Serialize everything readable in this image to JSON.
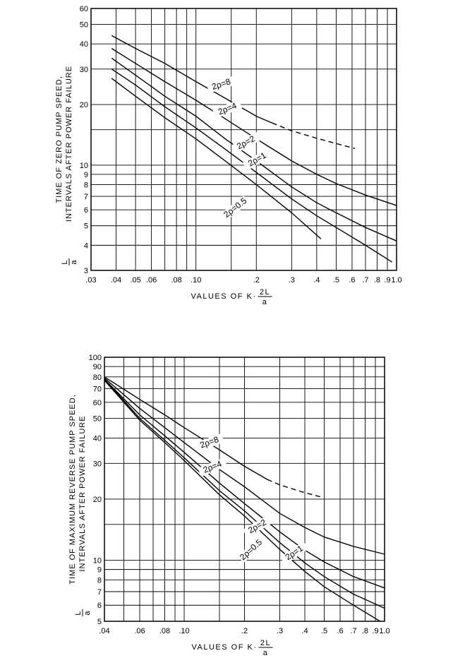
{
  "chart_data": [
    {
      "type": "line",
      "x_scale": "log",
      "y_scale": "log",
      "xlim": [
        0.03,
        1.0
      ],
      "ylim": [
        3,
        60
      ],
      "grid": true,
      "x_tick_labels": [
        ".03",
        ".04",
        ".05",
        ".06",
        ".08",
        ".10",
        ".2",
        ".3",
        ".4",
        ".5",
        ".6",
        ".7",
        ".8",
        ".9",
        "1.0"
      ],
      "x_tick_values": [
        0.03,
        0.04,
        0.05,
        0.06,
        0.08,
        0.1,
        0.2,
        0.3,
        0.4,
        0.5,
        0.6,
        0.7,
        0.8,
        0.9,
        1.0
      ],
      "x_grid_values": [
        0.03,
        0.04,
        0.05,
        0.06,
        0.07,
        0.08,
        0.09,
        0.1,
        0.15,
        0.2,
        0.3,
        0.4,
        0.5,
        0.6,
        0.7,
        0.8,
        0.9,
        1.0
      ],
      "y_tick_labels": [
        "60",
        "50",
        "40",
        "30",
        "20",
        "10",
        "9",
        "8",
        "7",
        "6",
        "5",
        "4",
        "3"
      ],
      "y_tick_values": [
        60,
        50,
        40,
        30,
        20,
        10,
        9,
        8,
        7,
        6,
        5,
        4,
        3
      ],
      "y_grid_values": [
        3,
        4,
        5,
        6,
        7,
        8,
        9,
        10,
        15,
        20,
        30,
        40,
        50,
        60
      ],
      "xlabel_main": "VALUES OF K·",
      "xlabel_num": "2L",
      "xlabel_den": "a",
      "ylabel_line1": "TIME OF ZERO PUMP SPEED,",
      "ylabel_frac_num": "L",
      "ylabel_frac_den": "a",
      "ylabel_line2": "INTERVALS AFTER POWER FAILURE",
      "series": [
        {
          "name": "2ρ=8",
          "x": [
            0.038,
            0.05,
            0.07,
            0.1,
            0.14,
            0.2,
            0.24
          ],
          "y": [
            44,
            38,
            32,
            26,
            21.5,
            17.5,
            16.2
          ],
          "dashed_x": [
            0.24,
            0.3,
            0.4,
            0.5,
            0.62
          ],
          "dashed_y": [
            16.2,
            14.8,
            13.6,
            12.8,
            12.1
          ]
        },
        {
          "name": "2ρ=4",
          "x": [
            0.038,
            0.05,
            0.07,
            0.1,
            0.14,
            0.2,
            0.3,
            0.4,
            0.5,
            0.7,
            1.0
          ],
          "y": [
            38,
            32,
            26,
            21,
            17,
            13.5,
            10.5,
            9,
            8.1,
            7.1,
            6.3
          ]
        },
        {
          "name": "2ρ=2",
          "x": [
            0.038,
            0.05,
            0.07,
            0.1,
            0.14,
            0.2,
            0.3,
            0.4,
            0.5,
            0.7,
            1.0
          ],
          "y": [
            34,
            28,
            22,
            17.5,
            13.5,
            10.5,
            7.8,
            6.5,
            5.8,
            4.9,
            4.2
          ]
        },
        {
          "name": "2ρ=1",
          "x": [
            0.038,
            0.05,
            0.07,
            0.1,
            0.14,
            0.2,
            0.3,
            0.4,
            0.5,
            0.7,
            0.95
          ],
          "y": [
            30,
            25,
            19.5,
            15.3,
            12,
            9.2,
            6.8,
            5.6,
            4.9,
            4.0,
            3.3
          ]
        },
        {
          "name": "2ρ=0.5",
          "x": [
            0.038,
            0.05,
            0.07,
            0.1,
            0.14,
            0.2,
            0.3,
            0.42
          ],
          "y": [
            27,
            22,
            17.2,
            13.5,
            10.5,
            8.0,
            5.8,
            4.3
          ]
        }
      ],
      "annotations": [
        {
          "text": "2ρ=8",
          "x": 0.135,
          "y": 24.5,
          "angle": -18
        },
        {
          "text": "2ρ=4",
          "x": 0.145,
          "y": 18.5,
          "angle": -22
        },
        {
          "text": "2ρ=2",
          "x": 0.18,
          "y": 12.6,
          "angle": -28
        },
        {
          "text": "2ρ=1",
          "x": 0.205,
          "y": 10.4,
          "angle": -30
        },
        {
          "text": "2ρ=0.5",
          "x": 0.16,
          "y": 6.0,
          "angle": -38
        }
      ]
    },
    {
      "type": "line",
      "x_scale": "log",
      "y_scale": "log",
      "xlim": [
        0.04,
        1.0
      ],
      "ylim": [
        5,
        100
      ],
      "grid": true,
      "x_tick_labels": [
        ".04",
        ".06",
        ".08",
        ".10",
        ".2",
        ".3",
        ".4",
        ".5",
        ".6",
        ".7",
        ".8",
        ".9",
        "1.0"
      ],
      "x_tick_values": [
        0.04,
        0.06,
        0.08,
        0.1,
        0.2,
        0.3,
        0.4,
        0.5,
        0.6,
        0.7,
        0.8,
        0.9,
        1.0
      ],
      "x_grid_values": [
        0.04,
        0.05,
        0.06,
        0.07,
        0.08,
        0.09,
        0.1,
        0.15,
        0.2,
        0.3,
        0.4,
        0.5,
        0.6,
        0.7,
        0.8,
        0.9,
        1.0
      ],
      "y_tick_labels": [
        "100",
        "90",
        "80",
        "70",
        "60",
        "50",
        "40",
        "30",
        "20",
        "10",
        "9",
        "8",
        "7",
        "6",
        "5"
      ],
      "y_tick_values": [
        100,
        90,
        80,
        70,
        60,
        50,
        40,
        30,
        20,
        10,
        9,
        8,
        7,
        6,
        5
      ],
      "y_grid_values": [
        5,
        6,
        7,
        8,
        9,
        10,
        15,
        20,
        30,
        40,
        50,
        60,
        70,
        80,
        90,
        100
      ],
      "xlabel_main": "VALUES OF K·",
      "xlabel_num": "2L",
      "xlabel_den": "a",
      "ylabel_line1": "TIME OF MAXIMUM REVERSE PUMP SPEED,",
      "ylabel_frac_num": "L",
      "ylabel_frac_den": "a",
      "ylabel_line2": "INTERVALS AFTER POWER FAILURE",
      "series": [
        {
          "name": "2ρ=8",
          "x": [
            0.04,
            0.06,
            0.08,
            0.1,
            0.15,
            0.2,
            0.26
          ],
          "y": [
            80,
            62,
            52,
            45,
            35,
            29,
            25
          ],
          "dashed_x": [
            0.26,
            0.3,
            0.4,
            0.48
          ],
          "dashed_y": [
            25,
            23.5,
            21.5,
            20.5
          ]
        },
        {
          "name": "2ρ=4",
          "x": [
            0.04,
            0.06,
            0.08,
            0.1,
            0.15,
            0.2,
            0.3,
            0.4,
            0.5,
            0.7,
            1.0
          ],
          "y": [
            79,
            56,
            45,
            38,
            28,
            23,
            17,
            14.5,
            13,
            11.7,
            10.7
          ]
        },
        {
          "name": "2ρ=2",
          "x": [
            0.04,
            0.06,
            0.08,
            0.1,
            0.15,
            0.2,
            0.3,
            0.4,
            0.5,
            0.7,
            1.0
          ],
          "y": [
            78,
            52,
            41,
            34,
            24,
            19,
            13.8,
            11.2,
            9.8,
            8.3,
            7.3
          ]
        },
        {
          "name": "2ρ=1",
          "x": [
            0.04,
            0.06,
            0.08,
            0.1,
            0.15,
            0.2,
            0.3,
            0.4,
            0.5,
            0.7,
            1.0
          ],
          "y": [
            78,
            50,
            39,
            32,
            22,
            17.5,
            12.2,
            9.7,
            8.3,
            6.8,
            5.8
          ]
        },
        {
          "name": "2ρ=0.5",
          "x": [
            0.04,
            0.06,
            0.08,
            0.1,
            0.15,
            0.2,
            0.3,
            0.4,
            0.5,
            0.7,
            0.95
          ],
          "y": [
            77,
            49,
            38,
            31,
            21,
            16.5,
            11.3,
            8.8,
            7.4,
            6.0,
            5.0
          ]
        }
      ],
      "annotations": [
        {
          "text": "2ρ=8",
          "x": 0.135,
          "y": 37,
          "angle": -20
        },
        {
          "text": "2ρ=4",
          "x": 0.14,
          "y": 28,
          "angle": -22
        },
        {
          "text": "2ρ=2",
          "x": 0.235,
          "y": 14.3,
          "angle": -30
        },
        {
          "text": "2ρ=1",
          "x": 0.36,
          "y": 10.6,
          "angle": -34
        },
        {
          "text": "2ρ=0.5",
          "x": 0.22,
          "y": 11.0,
          "angle": -42
        }
      ]
    }
  ]
}
